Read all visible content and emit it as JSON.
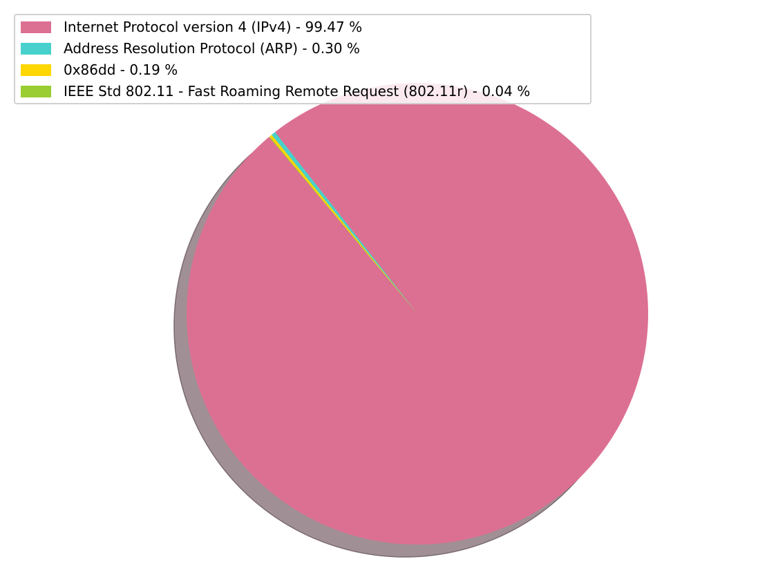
{
  "chart_data": {
    "type": "pie",
    "shadow": true,
    "slices": [
      {
        "label": "Internet Protocol version 4 (IPv4) - 99.47 %",
        "value": 99.47,
        "color": "#dc7092"
      },
      {
        "label": "Address Resolution Protocol (ARP) - 0.30 %",
        "value": 0.3,
        "color": "#48d1cc"
      },
      {
        "label": "0x86dd - 0.19 %",
        "value": 0.19,
        "color": "#ffd700"
      },
      {
        "label": "IEEE Std 802.11 - Fast Roaming Remote Request (802.11r) - 0.04 %",
        "value": 0.04,
        "color": "#9acd32"
      }
    ],
    "start_angle_deg": 130,
    "legend": {
      "placement": "top-left"
    },
    "shadow_color": "#a09095"
  }
}
